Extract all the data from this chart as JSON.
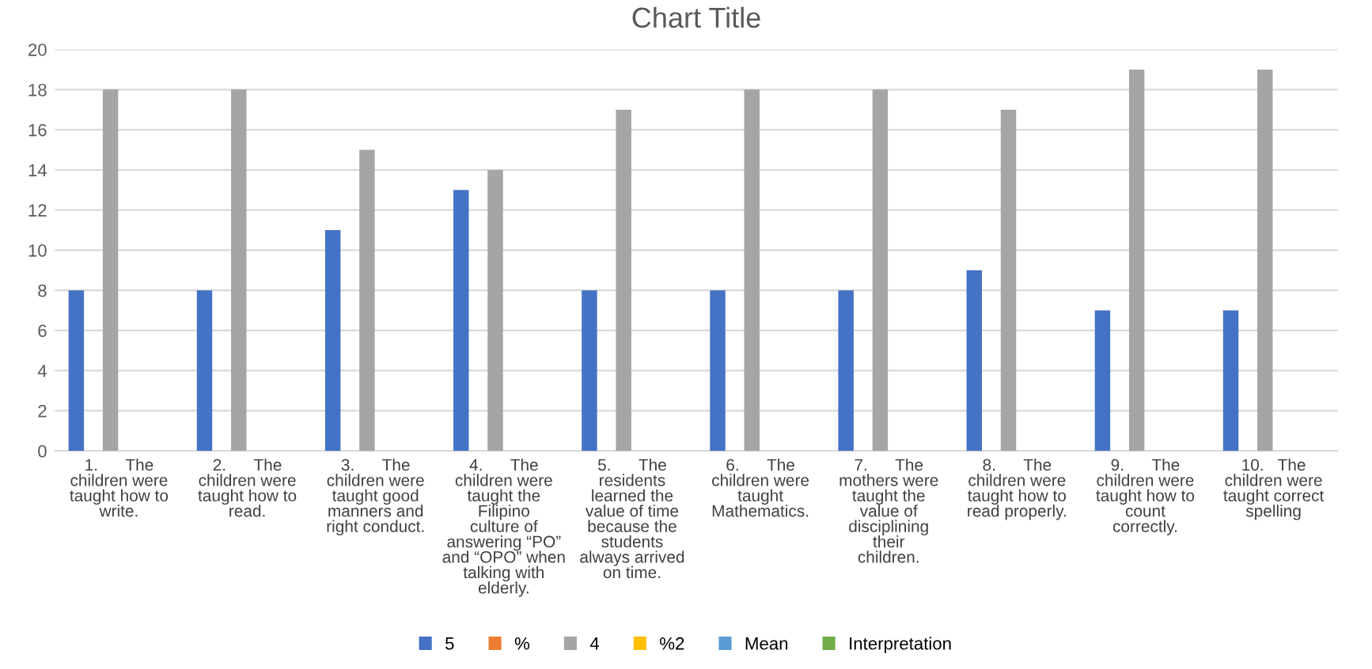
{
  "chart_data": {
    "type": "bar",
    "title": "Chart Title",
    "categories": [
      "1.      The children were taught how to write.",
      "2.      The children were taught how to read.",
      "3.      The children were taught good manners and right conduct.",
      "4.      The children were taught the Filipino culture of answering “PO” and “OPO” when talking with elderly.",
      "5.      The residents learned the value of time because the students always arrived on time.",
      "6.      The children were taught Mathematics.",
      "7.      The mothers were taught the value of disciplining their children.",
      "8.      The children were taught how to read properly.",
      "9.      The children were taught how to count correctly.",
      "10.   The children were taught correct spelling"
    ],
    "series": [
      {
        "name": "5",
        "color": "#4472c4",
        "values": [
          8,
          8,
          11,
          13,
          8,
          8,
          8,
          9,
          7,
          7
        ]
      },
      {
        "name": "%",
        "color": "#ed7d31",
        "values": [
          null,
          null,
          null,
          null,
          null,
          null,
          null,
          null,
          null,
          null
        ]
      },
      {
        "name": "4",
        "color": "#a5a5a5",
        "values": [
          18,
          18,
          15,
          14,
          17,
          18,
          18,
          17,
          19,
          19
        ]
      },
      {
        "name": "%2",
        "color": "#ffc000",
        "values": [
          null,
          null,
          null,
          null,
          null,
          null,
          null,
          null,
          null,
          null
        ]
      },
      {
        "name": "Mean",
        "color": "#5b9bd5",
        "values": [
          null,
          null,
          null,
          null,
          null,
          null,
          null,
          null,
          null,
          null
        ]
      },
      {
        "name": "Interpretation",
        "color": "#70ad47",
        "values": [
          null,
          null,
          null,
          null,
          null,
          null,
          null,
          null,
          null,
          null
        ]
      }
    ],
    "ylim": [
      0,
      20
    ],
    "yticks": [
      0,
      2,
      4,
      6,
      8,
      10,
      12,
      14,
      16,
      18,
      20
    ],
    "grid": "y",
    "legend": "bottom"
  }
}
